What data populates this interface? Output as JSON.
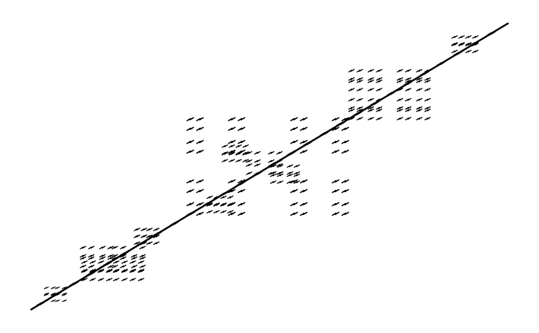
{
  "figure": {
    "type": "self-similar fractal pattern",
    "ink_color": "#000000",
    "background_color": "#ffffff",
    "mark_style": "clusters of four small tilted strokes along a diagonal"
  }
}
